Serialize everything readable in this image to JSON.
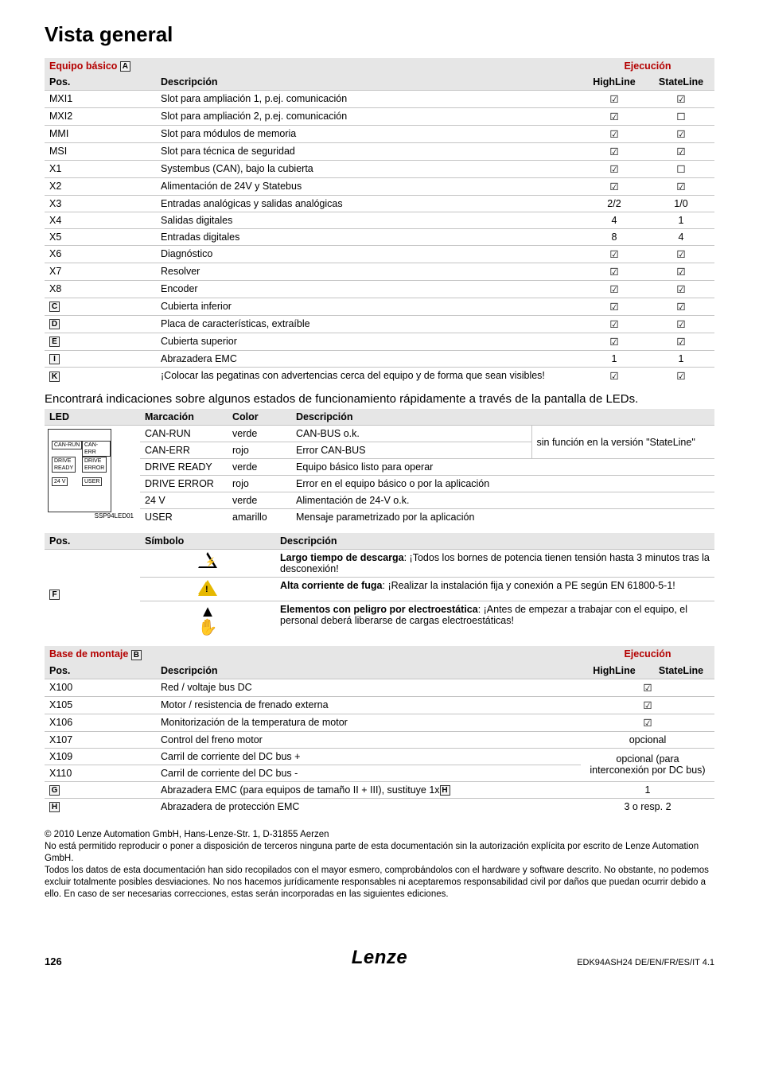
{
  "title": "Vista general",
  "colors": {
    "accent": "#b40000",
    "header_bg": "#e6e6e6",
    "rule": "#c4c4c4"
  },
  "check": "☑",
  "uncheck": "☐",
  "table1": {
    "head_left": "Equipo básico",
    "head_left_mark": "A",
    "head_right": "Ejecución",
    "col_pos": "Pos.",
    "col_desc": "Descripción",
    "col_hl": "HighLine",
    "col_sl": "StateLine",
    "rows": [
      {
        "pos": "MXI1",
        "desc": "Slot para ampliación 1, p.ej. comunicación",
        "hl": "☑",
        "sl": "☑"
      },
      {
        "pos": "MXI2",
        "desc": "Slot para ampliación 2, p.ej. comunicación",
        "hl": "☑",
        "sl": "☐"
      },
      {
        "pos": "MMI",
        "desc": "Slot para módulos de memoria",
        "hl": "☑",
        "sl": "☑"
      },
      {
        "pos": "MSI",
        "desc": "Slot para técnica de seguridad",
        "hl": "☑",
        "sl": "☑"
      },
      {
        "pos": "X1",
        "desc": "Systembus (CAN), bajo la cubierta",
        "hl": "☑",
        "sl": "☐"
      },
      {
        "pos": "X2",
        "desc": "Alimentación de 24V y Statebus",
        "hl": "☑",
        "sl": "☑"
      },
      {
        "pos": "X3",
        "desc": "Entradas analógicas y salidas analógicas",
        "hl": "2/2",
        "sl": "1/0"
      },
      {
        "pos": "X4",
        "desc": "Salidas digitales",
        "hl": "4",
        "sl": "1"
      },
      {
        "pos": "X5",
        "desc": "Entradas digitales",
        "hl": "8",
        "sl": "4"
      },
      {
        "pos": "X6",
        "desc": "Diagnóstico",
        "hl": "☑",
        "sl": "☑"
      },
      {
        "pos": "X7",
        "desc": "Resolver",
        "hl": "☑",
        "sl": "☑"
      },
      {
        "pos": "X8",
        "desc": "Encoder",
        "hl": "☑",
        "sl": "☑"
      },
      {
        "pos": "[C]",
        "posMark": "C",
        "desc": "Cubierta inferior",
        "hl": "☑",
        "sl": "☑"
      },
      {
        "pos": "[D]",
        "posMark": "D",
        "desc": "Placa de características, extraíble",
        "hl": "☑",
        "sl": "☑"
      },
      {
        "pos": "[E]",
        "posMark": "E",
        "desc": "Cubierta superior",
        "hl": "☑",
        "sl": "☑"
      },
      {
        "pos": "[I]",
        "posMark": "I",
        "desc": "Abrazadera EMC",
        "hl": "1",
        "sl": "1"
      },
      {
        "pos": "[K]",
        "posMark": "K",
        "desc": "¡Colocar las pegatinas con advertencias cerca del equipo y de forma que sean visibles!",
        "hl": "☑",
        "sl": "☑"
      }
    ]
  },
  "note1": "Encontrará indicaciones sobre algunos estados de funcionamiento rápidamente a través de la pantalla de LEDs.",
  "table2": {
    "col_led": "LED",
    "col_mark": "Marcación",
    "col_color": "Color",
    "col_desc": "Descripción",
    "led_caption": "SSP94LED01",
    "note_span": "sin función en la versión \"StateLine\"",
    "rows": [
      {
        "mark": "CAN-RUN",
        "color": "verde",
        "desc": "CAN-BUS o.k."
      },
      {
        "mark": "CAN-ERR",
        "color": "rojo",
        "desc": "Error CAN-BUS"
      },
      {
        "mark": "DRIVE READY",
        "color": "verde",
        "desc": "Equipo básico listo para operar"
      },
      {
        "mark": "DRIVE ERROR",
        "color": "rojo",
        "desc": "Error en el equipo básico o por la aplicación"
      },
      {
        "mark": "24 V",
        "color": "verde",
        "desc": "Alimentación de 24-V o.k."
      },
      {
        "mark": "USER",
        "color": "amarillo",
        "desc": "Mensaje parametrizado por la aplicación"
      }
    ]
  },
  "table3": {
    "col_pos": "Pos.",
    "col_sym": "Símbolo",
    "col_desc": "Descripción",
    "pos_mark": "F",
    "rows": [
      {
        "sym": "bolt",
        "tri_color": "#000",
        "bold": "Largo tiempo de descarga",
        "rest": ": ¡Todos los bornes de potencia tienen tensión hasta 3 minutos tras la desconexión!"
      },
      {
        "sym": "excl",
        "tri_color": "#e6b800",
        "bold": "Alta corriente de fuga",
        "rest": ": ¡Realizar la instalación fija y conexión a PE según EN 61800-5-1!"
      },
      {
        "sym": "esd",
        "bold": "Elementos con peligro por electroestática",
        "rest": ": ¡Antes de empezar a trabajar con el equipo, el personal deberá liberarse de cargas electroestáticas!"
      }
    ]
  },
  "table4": {
    "head_left": "Base de montaje",
    "head_left_mark": "B",
    "head_right": "Ejecución",
    "col_pos": "Pos.",
    "col_desc": "Descripción",
    "col_hl": "HighLine",
    "col_sl": "StateLine",
    "rows": [
      {
        "pos": "X100",
        "desc": "Red / voltaje bus DC",
        "v": "☑",
        "type": "single"
      },
      {
        "pos": "X105",
        "desc": "Motor / resistencia de frenado externa",
        "v": "☑",
        "type": "single"
      },
      {
        "pos": "X106",
        "desc": "Monitorización de la temperatura de motor",
        "v": "☑",
        "type": "single"
      },
      {
        "pos": "X107",
        "desc": "Control del freno motor",
        "v": "opcional",
        "type": "single"
      },
      {
        "pos": "X109",
        "desc": "Carril de corriente del DC bus +",
        "v": "opcional\n(para interconexión por DC bus)",
        "type": "span2top"
      },
      {
        "pos": "X110",
        "desc": "Carril de corriente del DC bus -",
        "type": "span2bot"
      },
      {
        "pos": "[G]",
        "posMark": "G",
        "desc": "Abrazadera EMC (para equipos de tamaño II + III), sustituye 1x",
        "descMark": "H",
        "v": "1",
        "type": "single"
      },
      {
        "pos": "[H]",
        "posMark": "H",
        "desc": "Abrazadera de protección EMC",
        "v": "3 o resp. 2",
        "type": "single"
      }
    ]
  },
  "footer": {
    "copy": "© 2010 Lenze Automation GmbH, Hans-Lenze-Str. 1, D-31855 Aerzen",
    "p1": "No está permitido reproducir o poner a disposición de terceros ninguna parte de esta documentación sin la autorización explícita por escrito  de Lenze Automation GmbH.",
    "p2": "Todos los datos de esta documentación han sido recopilados con el mayor esmero, comprobándolos con el hardware y software descrito. No obstante, no podemos excluir totalmente posibles desviaciones. No nos hacemos jurídicamente responsables ni aceptaremos responsabilidad civil por daños que puedan ocurrir debido a ello. En caso de ser necesarias correcciones, estas serán incorporadas en las siguientes ediciones."
  },
  "pageno": "126",
  "brand": "Lenze",
  "docid": "EDK94ASH24  DE/EN/FR/ES/IT  4.1"
}
